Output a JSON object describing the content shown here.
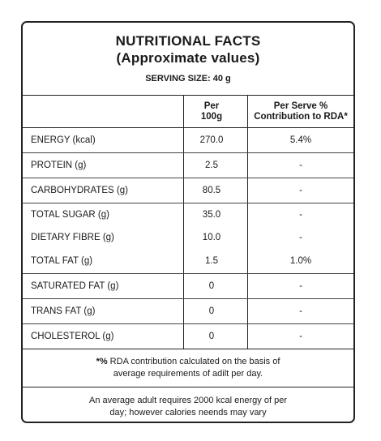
{
  "header": {
    "title_line1": "NUTRITIONAL FACTS",
    "title_line2": "(Approximate values)",
    "serving": "SERVING SIZE: 40 g"
  },
  "columns": {
    "per_line1": "Per",
    "per_line2": "100g",
    "rda_line1": "Per Serve %",
    "rda_line2": "Contribution to RDA*"
  },
  "rows": [
    {
      "label": "ENERGY (kcal)",
      "per100": "270.0",
      "rda": "5.4%"
    },
    {
      "label": "PROTEIN (g)",
      "per100": "2.5",
      "rda": "-"
    },
    {
      "label": "CARBOHYDRATES (g)",
      "per100": "80.5",
      "rda": "-"
    },
    {
      "label": "TOTAL SUGAR (g)",
      "per100": "35.0",
      "rda": "-"
    },
    {
      "label": "DIETARY FIBRE (g)",
      "per100": "10.0",
      "rda": "-"
    },
    {
      "label": "TOTAL FAT (g)",
      "per100": "1.5",
      "rda": "1.0%"
    },
    {
      "label": "SATURATED FAT (g)",
      "per100": "0",
      "rda": "-"
    },
    {
      "label": "TRANS FAT (g)",
      "per100": "0",
      "rda": "-"
    },
    {
      "label": "CHOLESTEROL (g)",
      "per100": "0",
      "rda": "-"
    }
  ],
  "footnote": {
    "star": "*%",
    "line1": " RDA contribution calculated on the basis of",
    "line2": "average requirements of adilt per day."
  },
  "note": {
    "line1": "An average adult requires 2000 kcal energy of per",
    "line2": "day; however calories neends may vary"
  }
}
